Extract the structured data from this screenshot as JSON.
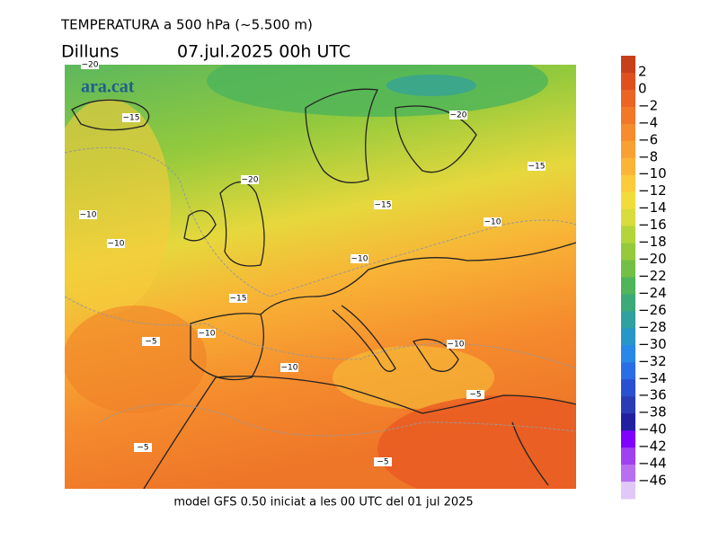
{
  "header": {
    "title": "TEMPERATURA a 500 hPa (~5.500 m)",
    "day": "Dilluns",
    "date": "07.jul.2025 00h  UTC"
  },
  "brand": "ara.cat",
  "footer": "model GFS 0.50 iniciat a les 00 UTC del 01 jul 2025",
  "contour_labels": [
    "−20",
    "−15",
    "−20",
    "−15",
    "−20",
    "−10",
    "−15",
    "−10",
    "−10",
    "−10",
    "−15",
    "−5",
    "−10",
    "−10",
    "−10",
    "−5",
    "−5",
    "−5"
  ],
  "colorbar": {
    "labels": [
      "2",
      "0",
      "−2",
      "−4",
      "−6",
      "−8",
      "−10",
      "−12",
      "−14",
      "−16",
      "−18",
      "−20",
      "−22",
      "−24",
      "−26",
      "−28",
      "−30",
      "−32",
      "−34",
      "−36",
      "−38",
      "−40",
      "−42",
      "−44",
      "−46"
    ],
    "colors": [
      "#c8401a",
      "#e0501e",
      "#ea6423",
      "#f07828",
      "#f58c2d",
      "#f8a032",
      "#fab437",
      "#fbcb3c",
      "#f2dc3c",
      "#d8dc3c",
      "#b4d43c",
      "#94ca3c",
      "#74c046",
      "#50b45a",
      "#3caa78",
      "#30a0a0",
      "#2896c8",
      "#2888e6",
      "#2a6ee6",
      "#2a50d2",
      "#2a3cb4",
      "#2020a0",
      "#8000ff",
      "#a040f0",
      "#b870f0",
      "#e0c8f8"
    ]
  }
}
